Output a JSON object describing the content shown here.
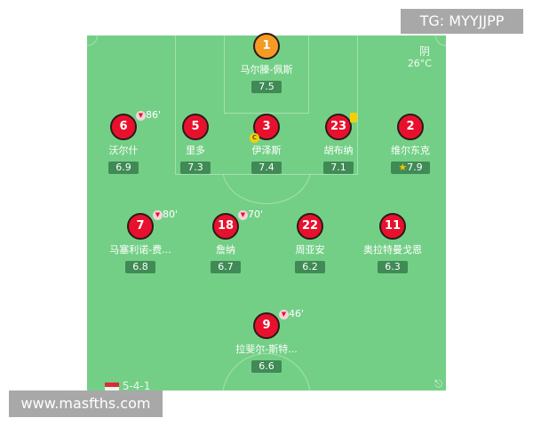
{
  "weather": {
    "condition": "阴",
    "temperature": "26°C"
  },
  "formation": "5-4-1",
  "share_icon": "share-icon",
  "colors": {
    "pitch": "#74cf86",
    "outfield": "#e8112d",
    "goalkeeper": "#f59a23",
    "rating_bg": "#3f8a55"
  },
  "players": [
    {
      "number": "1",
      "name": "马尔滕-佩斯",
      "rating": "7.5",
      "role": "goalkeeper"
    },
    {
      "number": "6",
      "name": "沃尔什",
      "rating": "6.9",
      "sub": "86'"
    },
    {
      "number": "5",
      "name": "里多",
      "rating": "7.3"
    },
    {
      "number": "3",
      "name": "伊泽斯",
      "rating": "7.4",
      "captain": "C"
    },
    {
      "number": "23",
      "name": "胡布纳",
      "rating": "7.1",
      "yellow_card": true
    },
    {
      "number": "2",
      "name": "维尔东克",
      "rating": "7.9",
      "best_player": true
    },
    {
      "number": "7",
      "name": "马塞利诺-费...",
      "rating": "6.8",
      "sub": "80'"
    },
    {
      "number": "18",
      "name": "詹纳",
      "rating": "6.7",
      "sub": "70'"
    },
    {
      "number": "22",
      "name": "周亚安",
      "rating": "6.2"
    },
    {
      "number": "11",
      "name": "奥拉特曼戈恩",
      "rating": "6.3"
    },
    {
      "number": "9",
      "name": "拉斐尔-斯特...",
      "rating": "6.6",
      "sub": "46'"
    }
  ],
  "watermarks": {
    "top": "TG: MYYJJPP",
    "bottom": "www.masfths.com"
  }
}
